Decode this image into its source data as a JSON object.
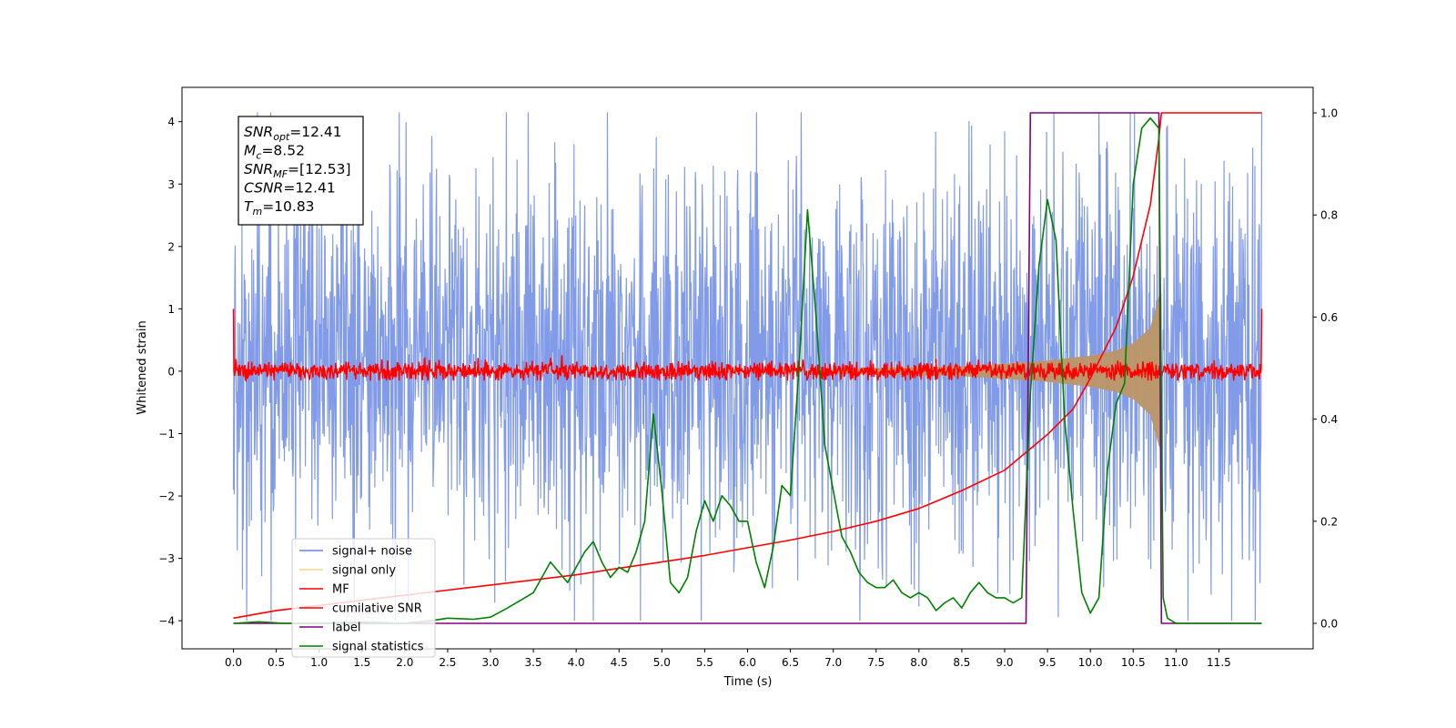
{
  "chart_data": {
    "type": "line",
    "xlabel": "Time (s)",
    "ylabel": "Whitened strain",
    "xlim": [
      -0.6,
      12.6
    ],
    "ylim": [
      -4.45,
      4.55
    ],
    "y2lim": [
      -0.05,
      1.05
    ],
    "x_ticks": [
      0.0,
      0.5,
      1.0,
      1.5,
      2.0,
      2.5,
      3.0,
      3.5,
      4.0,
      4.5,
      5.0,
      5.5,
      6.0,
      6.5,
      7.0,
      7.5,
      8.0,
      8.5,
      9.0,
      9.5,
      10.0,
      10.5,
      11.0,
      11.5
    ],
    "x_tick_labels": [
      "0.0",
      "0.5",
      "1.0",
      "1.5",
      "2.0",
      "2.5",
      "3.0",
      "3.5",
      "4.0",
      "4.5",
      "5.0",
      "5.5",
      "6.0",
      "6.5",
      "7.0",
      "7.5",
      "8.0",
      "8.5",
      "9.0",
      "9.5",
      "10.0",
      "10.5",
      "11.0",
      "11.5"
    ],
    "y_ticks": [
      -4,
      -3,
      -2,
      -1,
      0,
      1,
      2,
      3,
      4
    ],
    "y_tick_labels": [
      "−4",
      "−3",
      "−2",
      "−1",
      "0",
      "1",
      "2",
      "3",
      "4"
    ],
    "y2_ticks": [
      0.0,
      0.2,
      0.4,
      0.6,
      0.8,
      1.0
    ],
    "y2_tick_labels": [
      "0.0",
      "0.2",
      "0.4",
      "0.6",
      "0.8",
      "1.0"
    ],
    "legend_position": "lower-left",
    "annotation": {
      "lines": [
        {
          "base": "SNR",
          "sub": "opt",
          "value": "=12.41"
        },
        {
          "base": "M",
          "sub": "c",
          "value": "=8.52"
        },
        {
          "base": "SNR",
          "sub": "MF",
          "value": "=[12.53]"
        },
        {
          "base": "CSNR",
          "sub": "",
          "value": "=12.41"
        },
        {
          "base": "T",
          "sub": "m",
          "value": "=10.83"
        }
      ]
    },
    "series": [
      {
        "name": "signal+ noise",
        "axis": "left",
        "color": "#7b96e8",
        "kind": "noise",
        "x_range": [
          0.0,
          12.0
        ],
        "band": [
          -2.3,
          2.7
        ],
        "extreme_range": [
          -4.0,
          4.15
        ]
      },
      {
        "name": "signal only",
        "axis": "left",
        "color": "#f5c45a",
        "kind": "chirp",
        "x_range": [
          0.0,
          10.83
        ],
        "envelope": [
          [
            0.0,
            0.02
          ],
          [
            7.0,
            0.04
          ],
          [
            8.5,
            0.08
          ],
          [
            9.0,
            0.12
          ],
          [
            9.5,
            0.17
          ],
          [
            10.0,
            0.25
          ],
          [
            10.3,
            0.33
          ],
          [
            10.5,
            0.45
          ],
          [
            10.7,
            0.7
          ],
          [
            10.8,
            1.2
          ],
          [
            10.83,
            1.25
          ]
        ]
      },
      {
        "name": "MF",
        "axis": "left",
        "color": "#ff0000",
        "kind": "mf",
        "x_range": [
          0.0,
          12.0
        ],
        "band": [
          -0.15,
          0.2
        ],
        "start_value": 1.0,
        "end_value": 1.0
      },
      {
        "name": "cumilative SNR",
        "axis": "right",
        "color": "#ff0000",
        "kind": "curve",
        "points": [
          [
            0.0,
            0.01
          ],
          [
            0.5,
            0.025
          ],
          [
            1.0,
            0.035
          ],
          [
            1.5,
            0.045
          ],
          [
            2.0,
            0.055
          ],
          [
            2.5,
            0.065
          ],
          [
            3.0,
            0.075
          ],
          [
            3.5,
            0.085
          ],
          [
            4.0,
            0.095
          ],
          [
            4.5,
            0.108
          ],
          [
            5.0,
            0.12
          ],
          [
            5.5,
            0.133
          ],
          [
            6.0,
            0.148
          ],
          [
            6.5,
            0.163
          ],
          [
            7.0,
            0.18
          ],
          [
            7.5,
            0.2
          ],
          [
            8.0,
            0.225
          ],
          [
            8.5,
            0.26
          ],
          [
            9.0,
            0.3
          ],
          [
            9.5,
            0.37
          ],
          [
            9.8,
            0.42
          ],
          [
            10.0,
            0.48
          ],
          [
            10.3,
            0.58
          ],
          [
            10.5,
            0.68
          ],
          [
            10.7,
            0.82
          ],
          [
            10.8,
            0.95
          ],
          [
            10.83,
            1.0
          ],
          [
            12.0,
            1.0
          ]
        ]
      },
      {
        "name": "label",
        "axis": "right",
        "color": "#800080",
        "kind": "step",
        "points": [
          [
            0.0,
            0.0
          ],
          [
            9.25,
            0.0
          ],
          [
            9.3,
            1.0
          ],
          [
            10.8,
            1.0
          ],
          [
            10.83,
            0.0
          ],
          [
            12.0,
            0.0
          ]
        ]
      },
      {
        "name": "signal statistics",
        "axis": "right",
        "color": "#008000",
        "kind": "curve",
        "points": [
          [
            0.0,
            0.0
          ],
          [
            0.3,
            0.003
          ],
          [
            0.6,
            0.0
          ],
          [
            1.0,
            0.0
          ],
          [
            1.5,
            0.002
          ],
          [
            2.0,
            0.0
          ],
          [
            2.3,
            0.005
          ],
          [
            2.5,
            0.01
          ],
          [
            2.8,
            0.008
          ],
          [
            3.0,
            0.012
          ],
          [
            3.2,
            0.03
          ],
          [
            3.4,
            0.05
          ],
          [
            3.5,
            0.06
          ],
          [
            3.6,
            0.09
          ],
          [
            3.7,
            0.12
          ],
          [
            3.8,
            0.1
          ],
          [
            3.9,
            0.08
          ],
          [
            4.0,
            0.11
          ],
          [
            4.1,
            0.14
          ],
          [
            4.2,
            0.16
          ],
          [
            4.3,
            0.12
          ],
          [
            4.4,
            0.09
          ],
          [
            4.5,
            0.11
          ],
          [
            4.6,
            0.1
          ],
          [
            4.7,
            0.14
          ],
          [
            4.8,
            0.2
          ],
          [
            4.9,
            0.41
          ],
          [
            5.0,
            0.26
          ],
          [
            5.1,
            0.08
          ],
          [
            5.2,
            0.06
          ],
          [
            5.3,
            0.09
          ],
          [
            5.4,
            0.18
          ],
          [
            5.5,
            0.24
          ],
          [
            5.6,
            0.2
          ],
          [
            5.7,
            0.25
          ],
          [
            5.8,
            0.23
          ],
          [
            5.9,
            0.2
          ],
          [
            6.0,
            0.2
          ],
          [
            6.1,
            0.12
          ],
          [
            6.2,
            0.07
          ],
          [
            6.3,
            0.15
          ],
          [
            6.4,
            0.27
          ],
          [
            6.5,
            0.25
          ],
          [
            6.6,
            0.5
          ],
          [
            6.7,
            0.81
          ],
          [
            6.8,
            0.6
          ],
          [
            6.9,
            0.35
          ],
          [
            7.0,
            0.26
          ],
          [
            7.1,
            0.17
          ],
          [
            7.2,
            0.14
          ],
          [
            7.3,
            0.1
          ],
          [
            7.4,
            0.08
          ],
          [
            7.5,
            0.07
          ],
          [
            7.6,
            0.07
          ],
          [
            7.7,
            0.085
          ],
          [
            7.8,
            0.06
          ],
          [
            7.9,
            0.05
          ],
          [
            8.0,
            0.06
          ],
          [
            8.1,
            0.05
          ],
          [
            8.2,
            0.025
          ],
          [
            8.3,
            0.04
          ],
          [
            8.4,
            0.05
          ],
          [
            8.5,
            0.03
          ],
          [
            8.6,
            0.06
          ],
          [
            8.7,
            0.08
          ],
          [
            8.8,
            0.06
          ],
          [
            8.9,
            0.05
          ],
          [
            9.0,
            0.05
          ],
          [
            9.1,
            0.04
          ],
          [
            9.2,
            0.05
          ],
          [
            9.3,
            0.45
          ],
          [
            9.4,
            0.7
          ],
          [
            9.5,
            0.83
          ],
          [
            9.6,
            0.75
          ],
          [
            9.7,
            0.4
          ],
          [
            9.8,
            0.22
          ],
          [
            9.9,
            0.06
          ],
          [
            10.0,
            0.02
          ],
          [
            10.1,
            0.05
          ],
          [
            10.2,
            0.3
          ],
          [
            10.3,
            0.43
          ],
          [
            10.4,
            0.47
          ],
          [
            10.5,
            0.86
          ],
          [
            10.6,
            0.97
          ],
          [
            10.7,
            0.99
          ],
          [
            10.8,
            0.97
          ],
          [
            10.85,
            0.05
          ],
          [
            10.9,
            0.01
          ],
          [
            11.0,
            0.0
          ],
          [
            11.5,
            0.0
          ],
          [
            12.0,
            0.0
          ]
        ]
      }
    ]
  }
}
